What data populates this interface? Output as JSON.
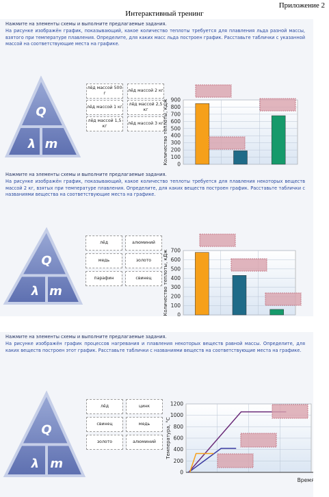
{
  "header": {
    "appendix": "Приложение 2",
    "title": "Интерактивный тренинг"
  },
  "panels": [
    {
      "instruction": "Нажмите на элементы схемы и выполните предлагаемые задания.",
      "task": "На рисунке изображён график, показывающий, какое количество теплоты требуется для плавления льда разной массы, взятого при температуре плавления. Определите, для каких масс льда построен график. Расставьте таблички с указанной массой на соответствующие места на графике.",
      "triangle": [
        "Q",
        "λ",
        "m"
      ],
      "cards": [
        "лёд массой 500 г",
        "лёд массой 2 кг",
        "лёд массой 1 кг",
        "лёд массой 2,5 кг",
        "лёд массой 1,5 кг",
        "лёд массой 3 кг"
      ],
      "chart_data": {
        "type": "bar",
        "y_label": "Количество теплоты, кДж",
        "values": [
          850,
          190,
          680
        ],
        "colors": [
          "#f6a01a",
          "#1f6b88",
          "#169a6b"
        ],
        "ylim": [
          0,
          900
        ],
        "yticks": [
          0,
          100,
          200,
          300,
          400,
          500,
          600,
          700,
          800,
          900
        ],
        "grid": true
      }
    },
    {
      "instruction": "Нажмите на элементы схемы и выполните предлагаемые задания.",
      "task": "На рисунке изображён график, показывающий, какое количество теплоты требуется для плавления некоторых веществ массой 2 кг, взятых при температуре плавления. Определите, для каких веществ построен график. Расставьте таблички с названиями вещества на соответствующие места на графике.",
      "triangle": [
        "Q",
        "λ",
        "m"
      ],
      "cards": [
        "лёд",
        "алюминий",
        "медь",
        "золото",
        "парафин",
        "свинец"
      ],
      "chart_data": {
        "type": "bar",
        "y_label": "Количество теплоты, кДж",
        "values": [
          680,
          430,
          60
        ],
        "colors": [
          "#f6a01a",
          "#1f6b88",
          "#169a6b"
        ],
        "ylim": [
          0,
          700
        ],
        "yticks": [
          0,
          100,
          200,
          300,
          400,
          500,
          600,
          700
        ],
        "grid": true
      }
    },
    {
      "instruction": "Нажмите на элементы схемы и выполните предлагаемые задания.",
      "task": "На рисунке изображён график процессов нагревания и плавления некоторых веществ равной массы. Определите, для каких веществ построен этот график. Расставьте таблички с названиями веществ на соответствующие места на графике.",
      "triangle": [
        "Q",
        "λ",
        "m"
      ],
      "cards": [
        "лёд",
        "цинк",
        "свинец",
        "медь",
        "золото",
        "алюминий"
      ],
      "chart_data": {
        "type": "line",
        "y_label": "Температура, °С",
        "x_label": "Время",
        "xlim": [
          0,
          10
        ],
        "ylim": [
          0,
          1200
        ],
        "yticks": [
          0,
          200,
          400,
          600,
          800,
          1000,
          1200
        ],
        "grid": true,
        "series": [
          {
            "color": "#6a2a78",
            "x": [
              0.2,
              4.4,
              8.0
            ],
            "values": [
              0,
              1060,
              1060
            ]
          },
          {
            "color": "#3a3aa0",
            "x": [
              0.2,
              2.8,
              4.0
            ],
            "values": [
              0,
              420,
              420
            ]
          },
          {
            "color": "#f6a01a",
            "x": [
              0.3,
              0.8,
              2.2
            ],
            "values": [
              0,
              330,
              330
            ]
          }
        ]
      }
    }
  ]
}
